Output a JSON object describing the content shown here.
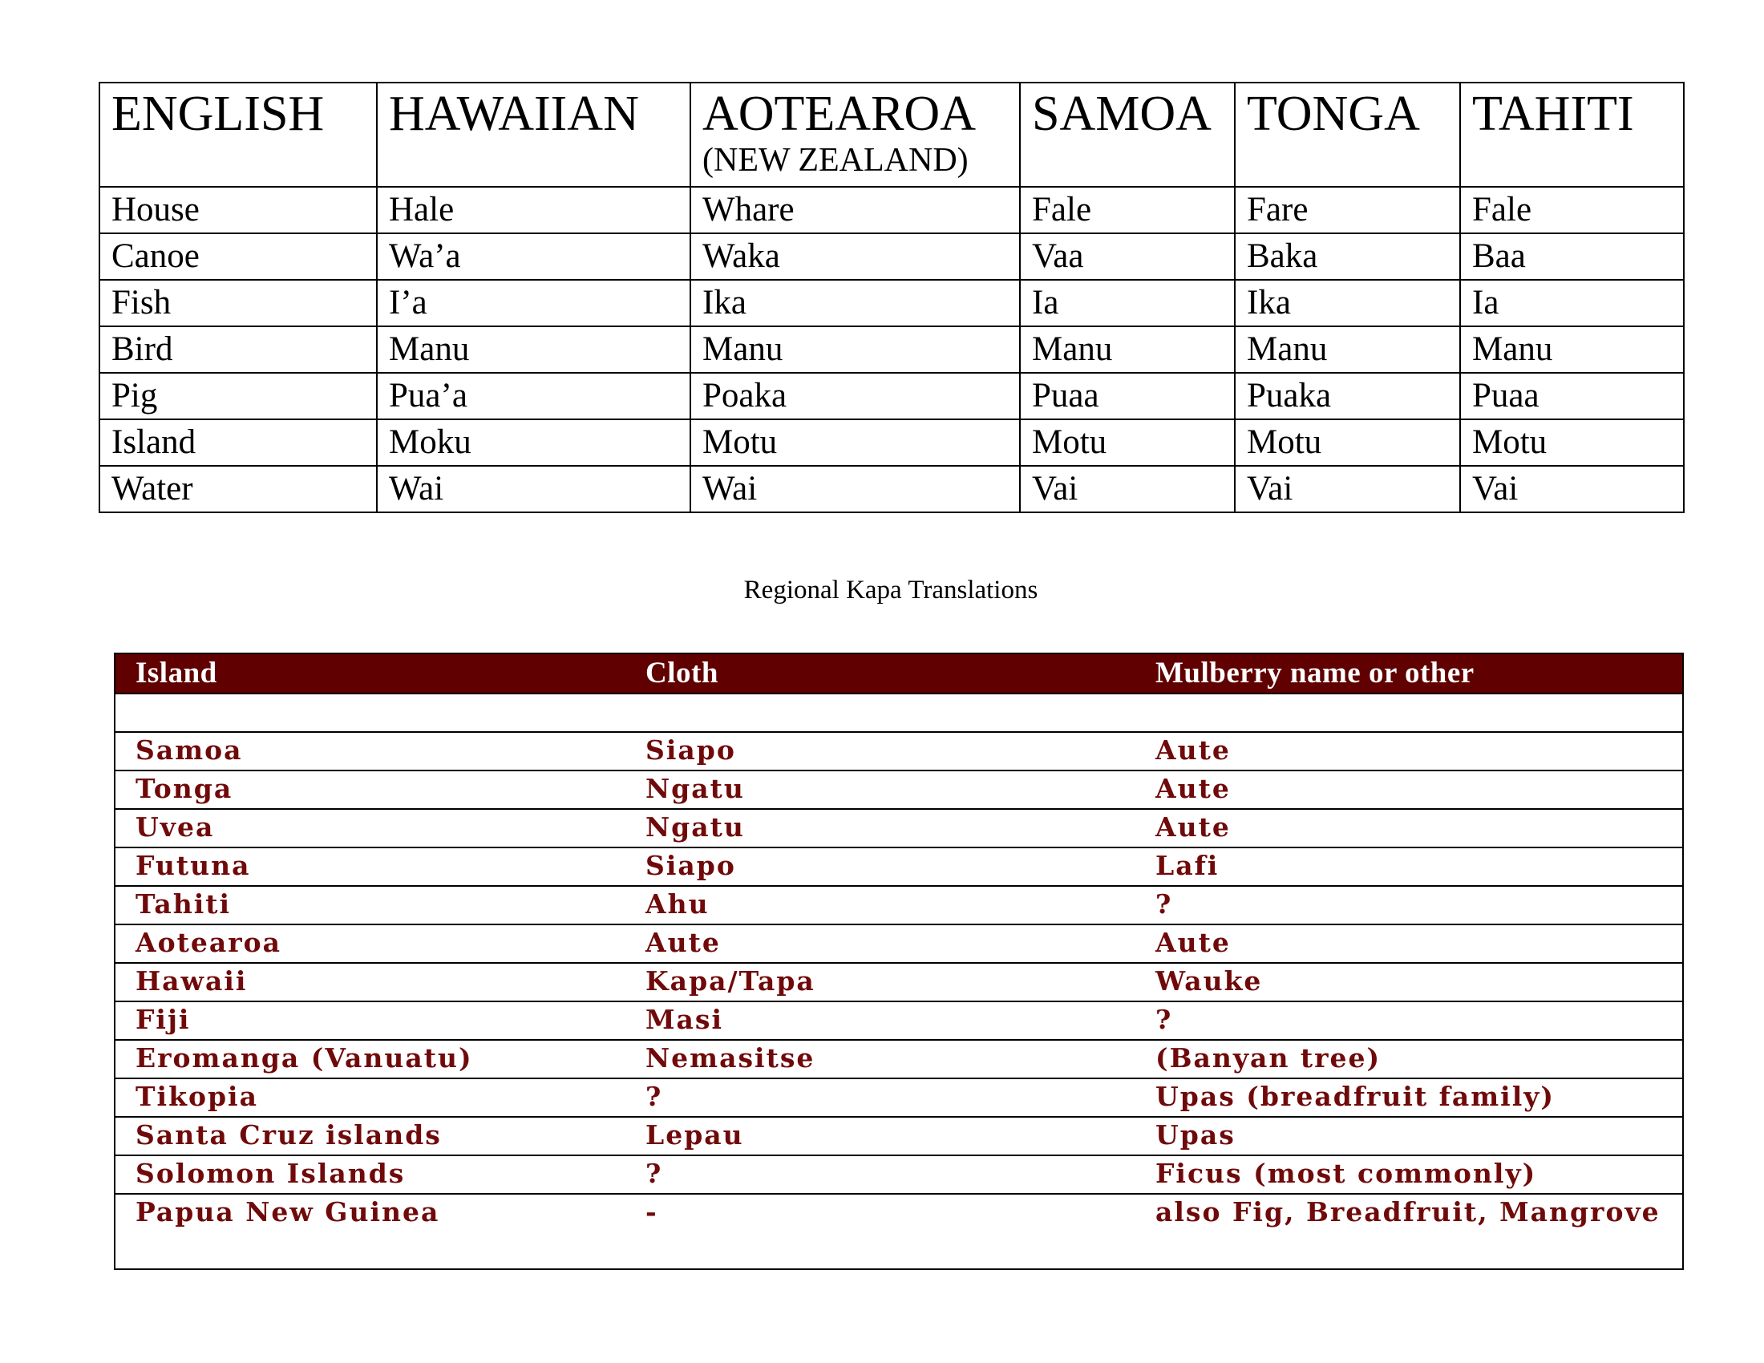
{
  "vocab_table": {
    "headers": [
      "ENGLISH",
      "HAWAIIAN",
      "AOTEAROA",
      "SAMOA",
      "TONGA",
      "TAHITI"
    ],
    "header_sub": {
      "AOTEAROA": "(NEW ZEALAND)"
    },
    "rows": [
      [
        "House",
        "Hale",
        "Whare",
        "Fale",
        "Fare",
        "Fale"
      ],
      [
        "Canoe",
        "Wa’a",
        "Waka",
        "Vaa",
        "Baka",
        "Baa"
      ],
      [
        "Fish",
        "I’a",
        "Ika",
        "Ia",
        "Ika",
        "Ia"
      ],
      [
        "Bird",
        "Manu",
        "Manu",
        "Manu",
        "Manu",
        "Manu"
      ],
      [
        "Pig",
        "Pua’a",
        "Poaka",
        "Puaa",
        "Puaka",
        "Puaa"
      ],
      [
        "Island",
        "Moku",
        "Motu",
        "Motu",
        "Motu",
        "Motu"
      ],
      [
        "Water",
        "Wai",
        "Wai",
        "Vai",
        "Vai",
        "Vai"
      ]
    ]
  },
  "kapa_table": {
    "title": "Regional Kapa Translations",
    "headers": [
      "Island",
      "Cloth",
      "Mulberry name or other"
    ],
    "header_bg": "#600000",
    "text_color": "#700a0a",
    "rows": [
      [
        "Samoa",
        "Siapo",
        "Aute"
      ],
      [
        "Tonga",
        "Ngatu",
        "Aute"
      ],
      [
        "Uvea",
        "Ngatu",
        "Aute"
      ],
      [
        "Futuna",
        "Siapo",
        "Lafi"
      ],
      [
        "Tahiti",
        "Ahu",
        "?"
      ],
      [
        "Aotearoa",
        "Aute",
        "Aute"
      ],
      [
        "Hawaii",
        "Kapa/Tapa",
        "Wauke"
      ],
      [
        "Fiji",
        "Masi",
        "?"
      ],
      [
        "Eromanga (Vanuatu)",
        "Nemasitse",
        "(Banyan tree)"
      ],
      [
        "Tikopia",
        "?",
        "Upas (breadfruit family)"
      ],
      [
        "Santa Cruz islands",
        "Lepau",
        "Upas"
      ],
      [
        "Solomon Islands",
        "?",
        "Ficus (most commonly)"
      ],
      [
        "Papua New Guinea",
        "-",
        "also Fig, Breadfruit, Mangrove"
      ]
    ]
  }
}
